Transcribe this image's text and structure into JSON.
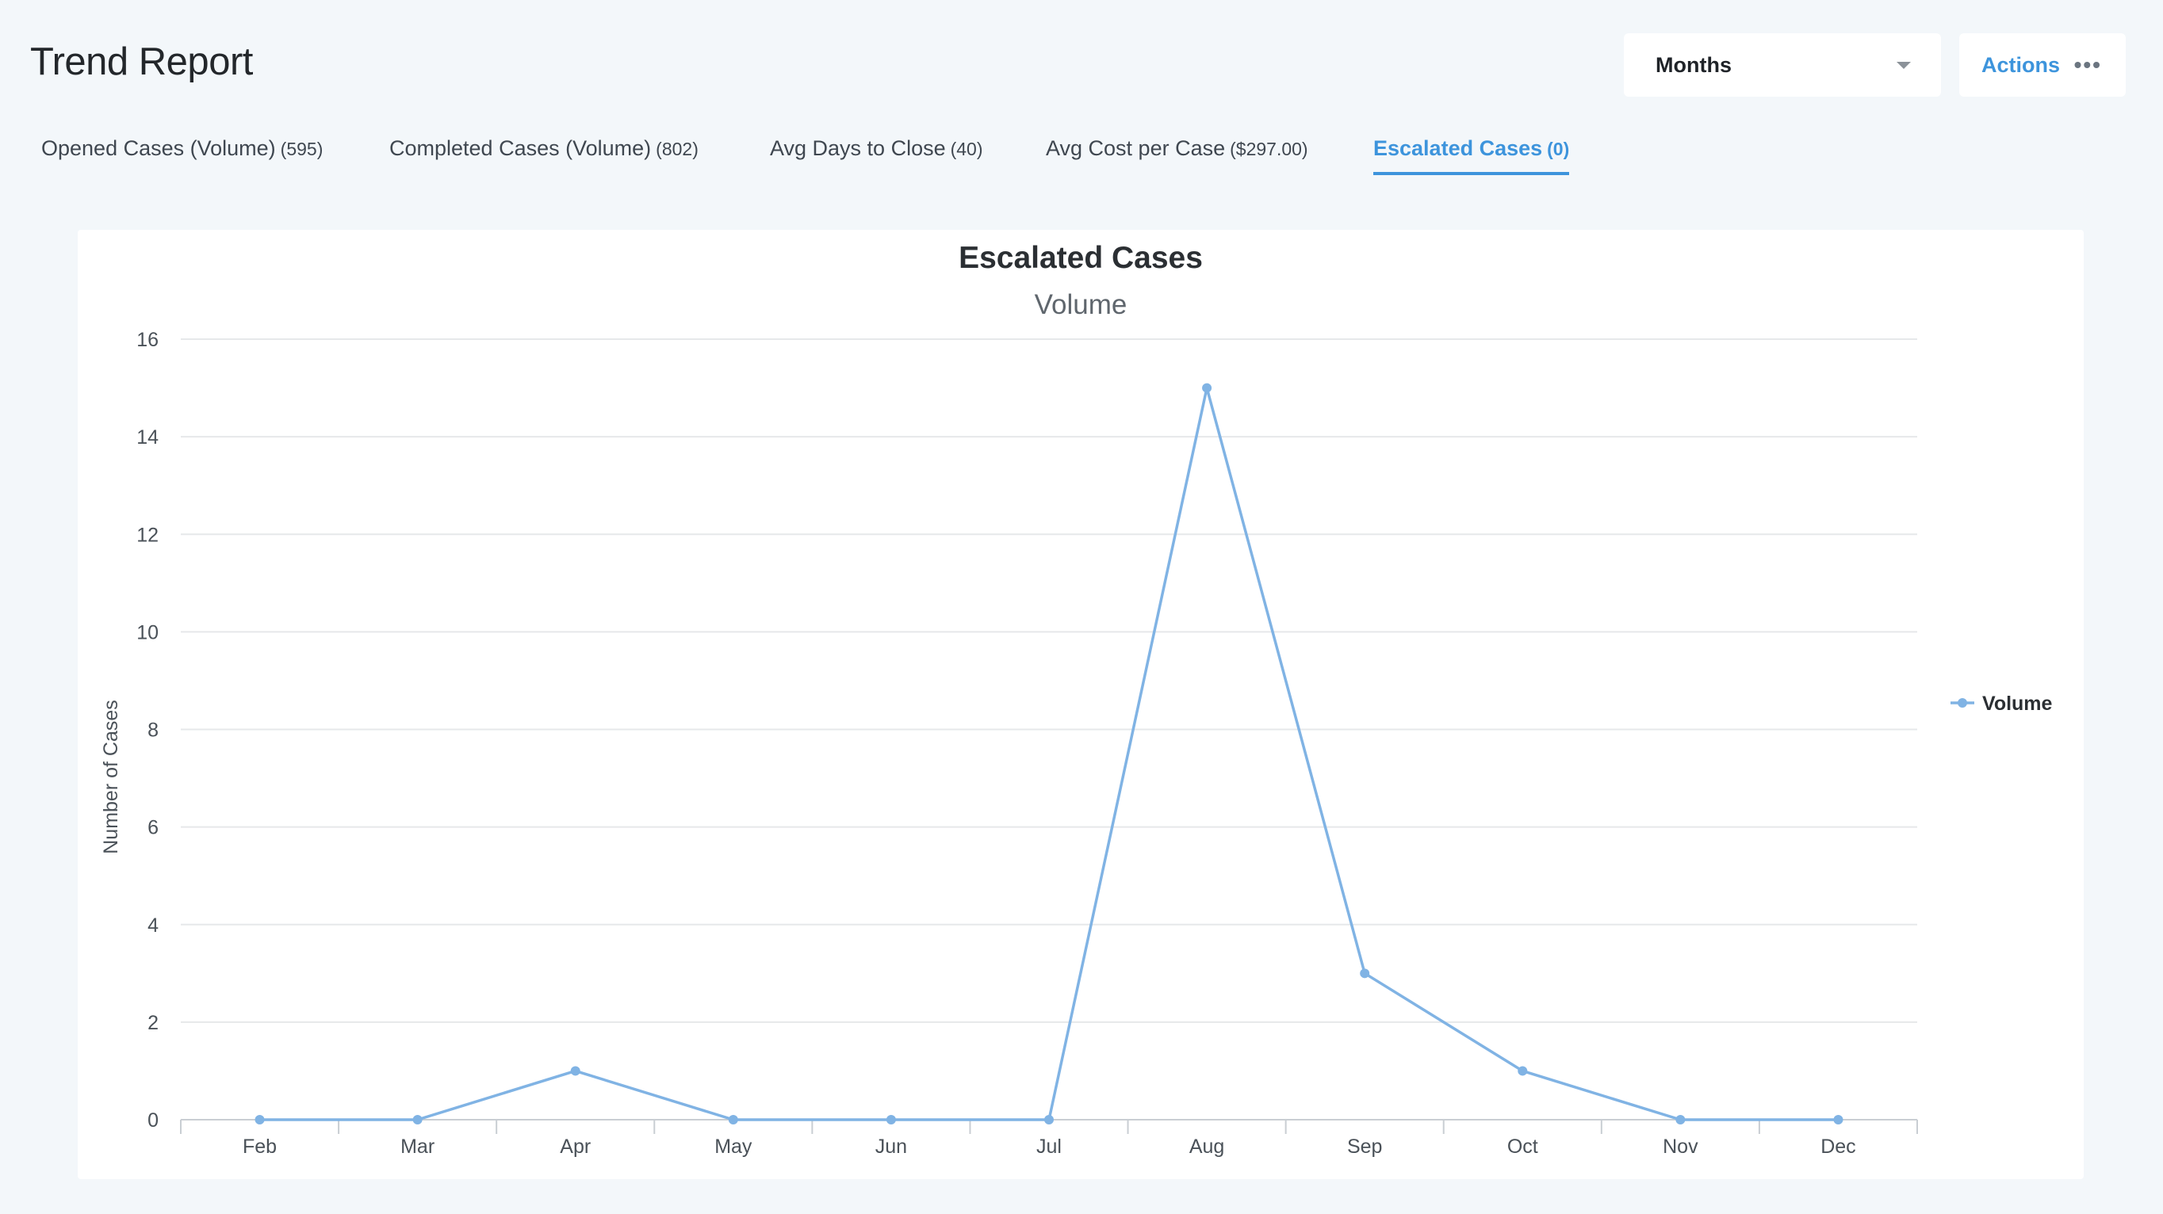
{
  "page": {
    "title": "Trend Report"
  },
  "controls": {
    "period_select": "Months",
    "actions_label": "Actions",
    "actions_icon": "more-dots-icon"
  },
  "tabs": [
    {
      "label": "Opened Cases (Volume)",
      "count": "(595)",
      "active": false
    },
    {
      "label": "Completed Cases (Volume)",
      "count": "(802)",
      "active": false
    },
    {
      "label": "Avg Days to Close",
      "count": "(40)",
      "active": false
    },
    {
      "label": "Avg Cost per Case",
      "count": "($297.00)",
      "active": false
    },
    {
      "label": "Escalated Cases",
      "count": "(0)",
      "active": true
    }
  ],
  "colors": {
    "accent": "#3d94dc",
    "series": "#80b3e4"
  },
  "chart_data": {
    "type": "line",
    "title": "Escalated Cases",
    "subtitle": "Volume",
    "xlabel": "",
    "ylabel": "Number of Cases",
    "categories": [
      "Feb",
      "Mar",
      "Apr",
      "May",
      "Jun",
      "Jul",
      "Aug",
      "Sep",
      "Oct",
      "Nov",
      "Dec"
    ],
    "series": [
      {
        "name": "Volume",
        "values": [
          0,
          0,
          1,
          0,
          0,
          0,
          15,
          3,
          1,
          0,
          0
        ]
      }
    ],
    "ylim": [
      0,
      16
    ],
    "yticks": [
      0,
      2,
      4,
      6,
      8,
      10,
      12,
      14,
      16
    ],
    "grid": true,
    "legend": "right"
  }
}
